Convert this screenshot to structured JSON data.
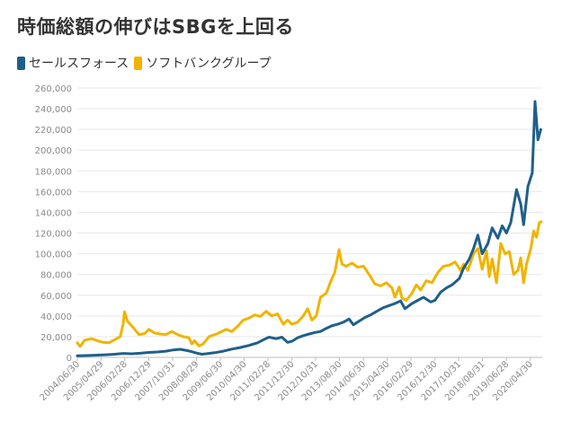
{
  "chart_data": {
    "type": "line",
    "title": "時価総額の伸びはSBGを上回る",
    "xlabel": "",
    "ylabel": "",
    "ylim": [
      0,
      260000
    ],
    "yticks": [
      0,
      20000,
      40000,
      60000,
      80000,
      100000,
      120000,
      140000,
      160000,
      180000,
      200000,
      220000,
      240000,
      260000
    ],
    "ytick_labels": [
      "0",
      "20,000",
      "40,000",
      "60,000",
      "80,000",
      "100,000",
      "120,000",
      "140,000",
      "160,000",
      "180,000",
      "200,000",
      "220,000",
      "240,000",
      "260,000"
    ],
    "xlim": [
      2004.5,
      2020.75
    ],
    "xticks": [
      {
        "label": "2004/06/30",
        "x": 2004.5
      },
      {
        "label": "2005/04/29",
        "x": 2005.33
      },
      {
        "label": "2006/02/28",
        "x": 2006.16
      },
      {
        "label": "2006/12/29",
        "x": 2007.0
      },
      {
        "label": "2007/10/31",
        "x": 2007.83
      },
      {
        "label": "2008/08/29",
        "x": 2008.66
      },
      {
        "label": "2009/06/30",
        "x": 2009.5
      },
      {
        "label": "2010/04/30",
        "x": 2010.33
      },
      {
        "label": "2011/02/28",
        "x": 2011.16
      },
      {
        "label": "2011/12/30",
        "x": 2012.0
      },
      {
        "label": "2012/10/31",
        "x": 2012.83
      },
      {
        "label": "2013/08/30",
        "x": 2013.66
      },
      {
        "label": "2014/06/30",
        "x": 2014.5
      },
      {
        "label": "2015/04/30",
        "x": 2015.33
      },
      {
        "label": "2016/02/29",
        "x": 2016.16
      },
      {
        "label": "2016/12/30",
        "x": 2017.0
      },
      {
        "label": "2017/10/31",
        "x": 2017.83
      },
      {
        "label": "2018/08/31",
        "x": 2018.66
      },
      {
        "label": "2019/06/28",
        "x": 2019.5
      },
      {
        "label": "2020/04/30",
        "x": 2020.33
      }
    ],
    "grid": true,
    "legend_position": "top-left",
    "series": [
      {
        "name": "セールスフォース",
        "color": "#1f5f8b",
        "points": [
          [
            2004.5,
            1500
          ],
          [
            2004.9,
            1800
          ],
          [
            2005.2,
            2200
          ],
          [
            2005.5,
            2500
          ],
          [
            2005.8,
            3000
          ],
          [
            2006.1,
            3800
          ],
          [
            2006.4,
            3500
          ],
          [
            2006.7,
            4000
          ],
          [
            2007.0,
            4800
          ],
          [
            2007.3,
            5200
          ],
          [
            2007.6,
            6000
          ],
          [
            2007.85,
            7200
          ],
          [
            2008.1,
            7800
          ],
          [
            2008.35,
            6500
          ],
          [
            2008.5,
            5500
          ],
          [
            2008.7,
            4000
          ],
          [
            2008.85,
            3000
          ],
          [
            2009.0,
            3500
          ],
          [
            2009.3,
            4500
          ],
          [
            2009.6,
            6000
          ],
          [
            2009.9,
            8000
          ],
          [
            2010.2,
            9500
          ],
          [
            2010.5,
            11500
          ],
          [
            2010.8,
            14000
          ],
          [
            2011.0,
            17000
          ],
          [
            2011.2,
            19500
          ],
          [
            2011.45,
            18000
          ],
          [
            2011.65,
            19500
          ],
          [
            2011.85,
            14500
          ],
          [
            2012.0,
            15500
          ],
          [
            2012.2,
            19000
          ],
          [
            2012.4,
            21000
          ],
          [
            2012.6,
            22500
          ],
          [
            2012.8,
            24000
          ],
          [
            2013.0,
            25000
          ],
          [
            2013.2,
            28000
          ],
          [
            2013.4,
            30500
          ],
          [
            2013.6,
            32000
          ],
          [
            2013.8,
            34000
          ],
          [
            2014.0,
            37000
          ],
          [
            2014.15,
            31500
          ],
          [
            2014.35,
            35000
          ],
          [
            2014.55,
            38500
          ],
          [
            2014.75,
            41000
          ],
          [
            2015.0,
            45000
          ],
          [
            2015.2,
            48000
          ],
          [
            2015.4,
            50000
          ],
          [
            2015.6,
            52000
          ],
          [
            2015.8,
            54500
          ],
          [
            2015.95,
            47000
          ],
          [
            2016.2,
            52000
          ],
          [
            2016.4,
            55000
          ],
          [
            2016.6,
            58000
          ],
          [
            2016.85,
            53500
          ],
          [
            2017.0,
            55000
          ],
          [
            2017.2,
            63000
          ],
          [
            2017.4,
            67000
          ],
          [
            2017.6,
            70000
          ],
          [
            2017.85,
            76000
          ],
          [
            2018.0,
            86000
          ],
          [
            2018.2,
            95000
          ],
          [
            2018.35,
            105000
          ],
          [
            2018.5,
            118000
          ],
          [
            2018.65,
            100000
          ],
          [
            2018.85,
            110000
          ],
          [
            2019.0,
            125000
          ],
          [
            2019.2,
            115000
          ],
          [
            2019.35,
            127000
          ],
          [
            2019.5,
            120000
          ],
          [
            2019.65,
            130000
          ],
          [
            2019.85,
            162000
          ],
          [
            2020.0,
            148000
          ],
          [
            2020.1,
            128000
          ],
          [
            2020.25,
            165000
          ],
          [
            2020.4,
            178000
          ],
          [
            2020.5,
            247000
          ],
          [
            2020.6,
            210000
          ],
          [
            2020.7,
            220000
          ]
        ]
      },
      {
        "name": "ソフトバンクグループ",
        "color": "#f0b400",
        "points": [
          [
            2004.5,
            14000
          ],
          [
            2004.6,
            10500
          ],
          [
            2004.75,
            16500
          ],
          [
            2005.0,
            18000
          ],
          [
            2005.2,
            16000
          ],
          [
            2005.4,
            14500
          ],
          [
            2005.6,
            14000
          ],
          [
            2005.8,
            17000
          ],
          [
            2006.0,
            20000
          ],
          [
            2006.1,
            32000
          ],
          [
            2006.15,
            44000
          ],
          [
            2006.25,
            35000
          ],
          [
            2006.45,
            29000
          ],
          [
            2006.65,
            22000
          ],
          [
            2006.85,
            23000
          ],
          [
            2007.0,
            27000
          ],
          [
            2007.2,
            23500
          ],
          [
            2007.4,
            22500
          ],
          [
            2007.6,
            22000
          ],
          [
            2007.8,
            25000
          ],
          [
            2008.0,
            22000
          ],
          [
            2008.2,
            20000
          ],
          [
            2008.4,
            19000
          ],
          [
            2008.5,
            13000
          ],
          [
            2008.6,
            16000
          ],
          [
            2008.75,
            11000
          ],
          [
            2008.9,
            13000
          ],
          [
            2009.1,
            20000
          ],
          [
            2009.4,
            23000
          ],
          [
            2009.7,
            27000
          ],
          [
            2009.9,
            25000
          ],
          [
            2010.1,
            30000
          ],
          [
            2010.3,
            36000
          ],
          [
            2010.5,
            38000
          ],
          [
            2010.7,
            41000
          ],
          [
            2010.9,
            39500
          ],
          [
            2011.1,
            44500
          ],
          [
            2011.3,
            40000
          ],
          [
            2011.5,
            42000
          ],
          [
            2011.7,
            32000
          ],
          [
            2011.85,
            36000
          ],
          [
            2012.0,
            32000
          ],
          [
            2012.2,
            34000
          ],
          [
            2012.4,
            40000
          ],
          [
            2012.55,
            47000
          ],
          [
            2012.7,
            36000
          ],
          [
            2012.85,
            40000
          ],
          [
            2013.0,
            58000
          ],
          [
            2013.2,
            62000
          ],
          [
            2013.35,
            73000
          ],
          [
            2013.5,
            82000
          ],
          [
            2013.65,
            104000
          ],
          [
            2013.75,
            90000
          ],
          [
            2013.9,
            88000
          ],
          [
            2014.1,
            91000
          ],
          [
            2014.3,
            87000
          ],
          [
            2014.5,
            88000
          ],
          [
            2014.7,
            80000
          ],
          [
            2014.9,
            71000
          ],
          [
            2015.1,
            69000
          ],
          [
            2015.3,
            72000
          ],
          [
            2015.5,
            67000
          ],
          [
            2015.6,
            58000
          ],
          [
            2015.75,
            68000
          ],
          [
            2015.85,
            57000
          ],
          [
            2016.0,
            55000
          ],
          [
            2016.2,
            62000
          ],
          [
            2016.35,
            70000
          ],
          [
            2016.5,
            65000
          ],
          [
            2016.7,
            74000
          ],
          [
            2016.9,
            72000
          ],
          [
            2017.1,
            82000
          ],
          [
            2017.3,
            88000
          ],
          [
            2017.5,
            89000
          ],
          [
            2017.7,
            92000
          ],
          [
            2017.9,
            84000
          ],
          [
            2018.0,
            90000
          ],
          [
            2018.15,
            84000
          ],
          [
            2018.35,
            100000
          ],
          [
            2018.5,
            105000
          ],
          [
            2018.65,
            85000
          ],
          [
            2018.8,
            103000
          ],
          [
            2018.9,
            78000
          ],
          [
            2019.0,
            95000
          ],
          [
            2019.15,
            72000
          ],
          [
            2019.3,
            110000
          ],
          [
            2019.45,
            100000
          ],
          [
            2019.6,
            102000
          ],
          [
            2019.75,
            80000
          ],
          [
            2019.9,
            84000
          ],
          [
            2020.0,
            96000
          ],
          [
            2020.1,
            72000
          ],
          [
            2020.2,
            90000
          ],
          [
            2020.35,
            105000
          ],
          [
            2020.45,
            122000
          ],
          [
            2020.55,
            116000
          ],
          [
            2020.65,
            130000
          ],
          [
            2020.72,
            131000
          ]
        ]
      }
    ]
  }
}
